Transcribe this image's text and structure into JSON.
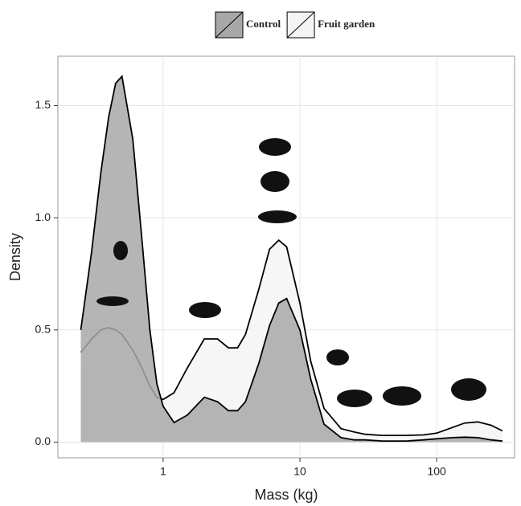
{
  "chart_data": {
    "type": "density",
    "x_label": "Mass (kg)",
    "y_label": "Density",
    "log_x": true,
    "grid": true,
    "legend": "top",
    "x": [
      0.25,
      0.3,
      0.35,
      0.4,
      0.45,
      0.5,
      0.6,
      0.7,
      0.8,
      0.9,
      1,
      1.2,
      1.5,
      2,
      2.5,
      3,
      3.5,
      4,
      5,
      6,
      7,
      8,
      10,
      12,
      15,
      20,
      25,
      30,
      40,
      60,
      80,
      100,
      130,
      160,
      200,
      250,
      303
    ],
    "series": [
      {
        "name": "Fruit garden",
        "color": "#f4f4f4",
        "values": [
          0.4,
          0.46,
          0.5,
          0.51,
          0.5,
          0.48,
          0.41,
          0.33,
          0.25,
          0.2,
          0.19,
          0.22,
          0.33,
          0.46,
          0.46,
          0.42,
          0.42,
          0.48,
          0.68,
          0.86,
          0.9,
          0.87,
          0.62,
          0.36,
          0.15,
          0.06,
          0.045,
          0.035,
          0.03,
          0.03,
          0.032,
          0.04,
          0.065,
          0.085,
          0.09,
          0.075,
          0.05
        ]
      },
      {
        "name": "Control",
        "color": "#a8a8a8",
        "values": [
          0.5,
          0.85,
          1.2,
          1.45,
          1.6,
          1.63,
          1.35,
          0.9,
          0.5,
          0.26,
          0.16,
          0.087,
          0.12,
          0.2,
          0.18,
          0.14,
          0.14,
          0.18,
          0.35,
          0.52,
          0.62,
          0.64,
          0.5,
          0.28,
          0.08,
          0.02,
          0.01,
          0.01,
          0.005,
          0.005,
          0.01,
          0.015,
          0.02,
          0.022,
          0.02,
          0.01,
          0.005
        ]
      }
    ],
    "xlim": [
      0.17,
      371
    ],
    "xticks": [
      1,
      10,
      100
    ],
    "ylim": [
      -0.07,
      1.72
    ],
    "yticks": [
      {
        "value": 0,
        "label": "0.0"
      },
      0.5,
      {
        "value": 1,
        "label": "1.0"
      },
      1.5
    ]
  }
}
